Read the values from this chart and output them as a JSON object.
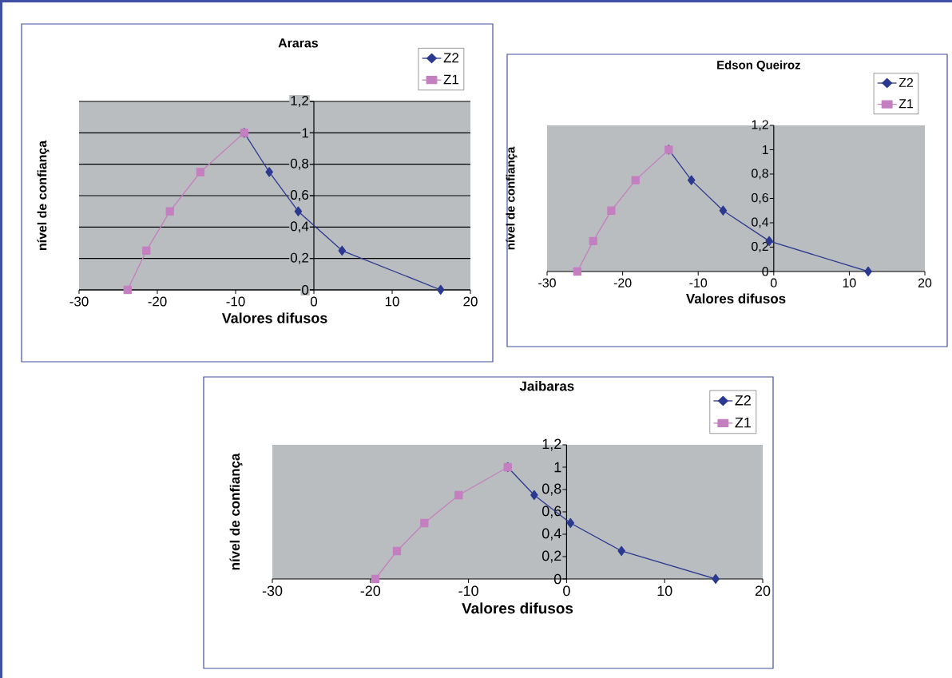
{
  "chart_data": [
    {
      "type": "line",
      "title": "Araras",
      "xlabel": "Valores difusos",
      "ylabel": "nível de confiança",
      "xlim": [
        -30,
        20
      ],
      "xticks": [
        -30,
        -20,
        -10,
        0,
        10,
        20
      ],
      "ylim": [
        0,
        1.2
      ],
      "yticks": [
        0,
        {
          "value": 0.2,
          "label": "0,2"
        },
        {
          "value": 0.4,
          "label": "0,4"
        },
        {
          "value": 0.6,
          "label": "0,6"
        },
        {
          "value": 0.8,
          "label": "0,8"
        },
        1,
        {
          "value": 1.2,
          "label": "1,2"
        }
      ],
      "grid": "y",
      "legend": "top right",
      "series": [
        {
          "name": "Z2",
          "color": "#2b3990",
          "marker": "diamond",
          "x": [
            -8.9,
            -5.7,
            -2.0,
            3.6,
            16.2
          ],
          "values": [
            1,
            0.75,
            0.5,
            0.25,
            0
          ]
        },
        {
          "name": "Z1",
          "color": "#c47fc0",
          "marker": "square",
          "x": [
            -23.8,
            -21.4,
            -18.4,
            -14.5,
            -8.9
          ],
          "values": [
            0,
            0.25,
            0.5,
            0.75,
            1
          ]
        }
      ]
    },
    {
      "type": "line",
      "title": "Edson Queiroz",
      "xlabel": "Valores difusos",
      "ylabel": "nível de confiança",
      "xlim": [
        -30,
        20
      ],
      "xticks": [
        -30,
        -20,
        -10,
        0,
        10,
        20
      ],
      "ylim": [
        0,
        1.2
      ],
      "yticks": [
        0,
        {
          "value": 0.2,
          "label": "0,2"
        },
        {
          "value": 0.4,
          "label": "0,4"
        },
        {
          "value": 0.6,
          "label": "0,6"
        },
        {
          "value": 0.8,
          "label": "0,8"
        },
        1,
        {
          "value": 1.2,
          "label": "1,2"
        }
      ],
      "legend": "top right",
      "series": [
        {
          "name": "Z2",
          "color": "#2b3990",
          "marker": "diamond",
          "x": [
            -13.9,
            -10.9,
            -6.7,
            -0.6,
            12.5
          ],
          "values": [
            1,
            0.75,
            0.5,
            0.25,
            0
          ]
        },
        {
          "name": "Z1",
          "color": "#c47fc0",
          "marker": "square",
          "x": [
            -26.0,
            -23.9,
            -21.5,
            -18.3,
            -13.9
          ],
          "values": [
            0,
            0.25,
            0.5,
            0.75,
            1
          ]
        }
      ]
    },
    {
      "type": "line",
      "title": "Jaibaras",
      "xlabel": "Valores difusos",
      "ylabel": "nível de confiança",
      "xlim": [
        -30,
        20
      ],
      "xticks": [
        -30,
        -20,
        -10,
        0,
        10,
        20
      ],
      "ylim": [
        0,
        1.2
      ],
      "yticks": [
        0,
        {
          "value": 0.2,
          "label": "0,2"
        },
        {
          "value": 0.4,
          "label": "0,4"
        },
        {
          "value": 0.6,
          "label": "0,6"
        },
        {
          "value": 0.8,
          "label": "0,8"
        },
        1,
        {
          "value": 1.2,
          "label": "1,2"
        }
      ],
      "legend": "top right",
      "series": [
        {
          "name": "Z2",
          "color": "#2b3990",
          "marker": "diamond",
          "x": [
            -6.0,
            -3.3,
            0.4,
            5.6,
            15.2
          ],
          "values": [
            1,
            0.75,
            0.5,
            0.25,
            0
          ]
        },
        {
          "name": "Z1",
          "color": "#c47fc0",
          "marker": "square",
          "x": [
            -19.5,
            -17.3,
            -14.5,
            -11.0,
            -6.0
          ],
          "values": [
            0,
            0.25,
            0.5,
            0.75,
            1
          ]
        }
      ]
    }
  ]
}
